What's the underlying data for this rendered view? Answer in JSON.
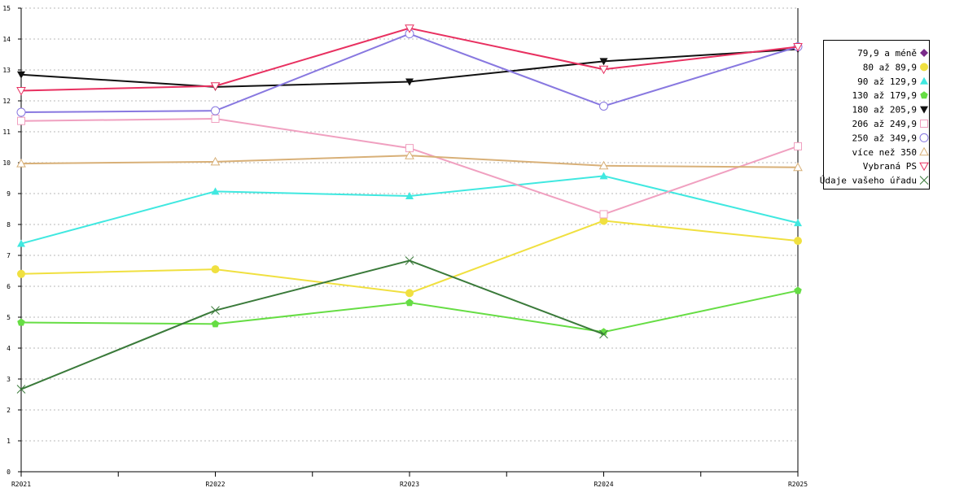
{
  "chart_data": {
    "type": "line",
    "categories": [
      "R2021",
      "R2022",
      "R2023",
      "R2024",
      "R2025"
    ],
    "ylim": [
      0,
      15
    ],
    "yticks": [
      0,
      1,
      2,
      3,
      4,
      5,
      6,
      7,
      8,
      9,
      10,
      11,
      12,
      13,
      14,
      15
    ],
    "grid": true,
    "legend_position": "right",
    "series": [
      {
        "name": "79,9 a méně",
        "color": "#7b2a8b",
        "marker": "diamond",
        "values": [
          null,
          null,
          null,
          null,
          null
        ]
      },
      {
        "name": "80 až 89,9",
        "color": "#f0e040",
        "marker": "circle",
        "values": [
          6.4,
          6.55,
          5.78,
          8.12,
          7.47
        ]
      },
      {
        "name": "90 až 129,9",
        "color": "#40e8e0",
        "marker": "triangle",
        "values": [
          7.38,
          9.07,
          8.92,
          9.57,
          8.05
        ]
      },
      {
        "name": "130 až 179,9",
        "color": "#66dd44",
        "marker": "pentagon",
        "values": [
          4.83,
          4.78,
          5.47,
          4.52,
          5.86
        ]
      },
      {
        "name": "180 až 205,9",
        "color": "#111111",
        "marker": "triangle-down",
        "values": [
          12.85,
          12.45,
          12.62,
          13.28,
          13.67
        ]
      },
      {
        "name": "206 až 249,9",
        "color": "#f0a0c0",
        "marker": "square-open",
        "values": [
          11.35,
          11.42,
          10.47,
          8.33,
          10.53
        ]
      },
      {
        "name": "250 až 349,9",
        "color": "#8878e0",
        "marker": "circle-open",
        "values": [
          11.63,
          11.68,
          14.17,
          11.83,
          13.75
        ]
      },
      {
        "name": "více než 350",
        "color": "#d8b078",
        "marker": "triangle-open",
        "values": [
          9.97,
          10.03,
          10.23,
          9.9,
          9.85
        ]
      },
      {
        "name": "Vybraná PS",
        "color": "#e83060",
        "marker": "triangle-down-open",
        "values": [
          12.33,
          12.48,
          14.35,
          13.02,
          13.75
        ]
      },
      {
        "name": "Údaje vašeho úřadu",
        "color": "#3a7a3a",
        "marker": "x",
        "values": [
          2.67,
          5.22,
          6.83,
          4.45,
          null
        ]
      }
    ]
  }
}
